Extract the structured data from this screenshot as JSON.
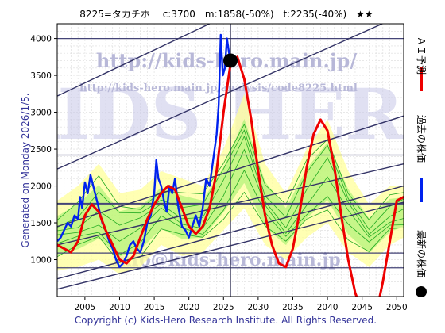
{
  "chart_data": {
    "type": "line",
    "title": "8225=タカチホ　 c:3700　m:1858(-50%)　t:2235(-40%)　★★",
    "xlim": [
      2001,
      2051
    ],
    "ylim": [
      500,
      4200
    ],
    "x_ticks": [
      "2005",
      "2010",
      "2015",
      "2020",
      "2025",
      "2030",
      "2035",
      "2040",
      "2045",
      "2050"
    ],
    "x_tick_values": [
      2005,
      2010,
      2015,
      2020,
      2025,
      2030,
      2035,
      2040,
      2045,
      2050
    ],
    "y_ticks": [
      "1000",
      "1500",
      "2000",
      "2500",
      "3000",
      "3500",
      "4000"
    ],
    "y_tick_values": [
      1000,
      1500,
      2000,
      2500,
      3000,
      3500,
      4000
    ],
    "current_point": {
      "x": 2026.0,
      "y": 3700
    },
    "current_date_line_x": 2026.0,
    "horizontal_levels": [
      4000,
      2420,
      1760,
      1090,
      890
    ],
    "trend_lines": [
      {
        "x": [
          2001,
          2051
        ],
        "y": [
          3220,
          5450
        ]
      },
      {
        "x": [
          2001,
          2051
        ],
        "y": [
          2230,
          4330
        ]
      },
      {
        "x": [
          2001,
          2051
        ],
        "y": [
          1450,
          2950
        ]
      },
      {
        "x": [
          2001,
          2051
        ],
        "y": [
          1200,
          2300
        ]
      },
      {
        "x": [
          2001,
          2051
        ],
        "y": [
          740,
          2000
        ]
      },
      {
        "x": [
          2001,
          2051
        ],
        "y": [
          600,
          1780
        ]
      }
    ],
    "series": [
      {
        "name": "過去の株価",
        "color": "#0022ee",
        "x": [
          2001,
          2001.5,
          2002,
          2002.5,
          2003,
          2003.5,
          2004,
          2004.3,
          2004.6,
          2005,
          2005.4,
          2005.8,
          2006.2,
          2006.6,
          2007,
          2007.5,
          2008,
          2008.5,
          2009,
          2009.5,
          2010,
          2010.5,
          2011,
          2011.5,
          2012,
          2012.5,
          2013,
          2013.5,
          2014,
          2014.5,
          2015,
          2015.3,
          2015.6,
          2016,
          2016.4,
          2016.8,
          2017.2,
          2017.6,
          2018,
          2018.5,
          2019,
          2019.5,
          2020,
          2020.5,
          2021,
          2021.5,
          2022,
          2022.5,
          2023,
          2023.5,
          2024,
          2024.3,
          2024.6,
          2024.9,
          2025.2,
          2025.5,
          2025.8,
          2026.0
        ],
        "values": [
          1250,
          1300,
          1400,
          1500,
          1450,
          1600,
          1550,
          1850,
          1700,
          2050,
          1900,
          2150,
          2000,
          1850,
          1700,
          1500,
          1400,
          1250,
          1150,
          1000,
          900,
          950,
          1050,
          1200,
          1250,
          1150,
          1100,
          1250,
          1500,
          1600,
          1900,
          2350,
          2100,
          2000,
          1800,
          1650,
          2000,
          1900,
          2100,
          1700,
          1450,
          1400,
          1300,
          1450,
          1600,
          1450,
          1700,
          2100,
          2000,
          2350,
          2700,
          3100,
          4050,
          3500,
          3600,
          4000,
          3800,
          3700
        ]
      },
      {
        "name": "ＡＩ予測",
        "color": "#ee0000",
        "x": [
          2001,
          2002,
          2003,
          2004,
          2005,
          2006,
          2007,
          2008,
          2009,
          2010,
          2011,
          2012,
          2013,
          2014,
          2015,
          2016,
          2017,
          2018,
          2019,
          2020,
          2021,
          2022,
          2023,
          2024,
          2025,
          2026,
          2027,
          2028,
          2029,
          2030,
          2031,
          2032,
          2033,
          2034,
          2035,
          2036,
          2037,
          2038,
          2039,
          2040,
          2041,
          2042,
          2043,
          2044,
          2045,
          2046,
          2047,
          2048,
          2049,
          2050,
          2051
        ],
        "values": [
          1200,
          1150,
          1100,
          1250,
          1600,
          1750,
          1650,
          1400,
          1200,
          1000,
          950,
          1050,
          1300,
          1550,
          1750,
          1900,
          2000,
          1950,
          1700,
          1450,
          1350,
          1450,
          1700,
          2200,
          3000,
          3650,
          3750,
          3450,
          2900,
          2200,
          1600,
          1200,
          950,
          900,
          1150,
          1650,
          2250,
          2700,
          2900,
          2750,
          2250,
          1600,
          1000,
          550,
          300,
          150,
          250,
          700,
          1250,
          1800,
          1850
        ]
      }
    ],
    "band": {
      "x": [
        2001,
        2004,
        2007,
        2010,
        2013,
        2016,
        2019,
        2022,
        2025,
        2028,
        2031,
        2034,
        2037,
        2040,
        2043,
        2046,
        2049,
        2051
      ],
      "upper": [
        1800,
        2000,
        2300,
        1900,
        1950,
        2200,
        2100,
        2000,
        2500,
        3250,
        2300,
        1900,
        2500,
        2900,
        2200,
        1750,
        2000,
        2000
      ],
      "lower": [
        850,
        900,
        1000,
        800,
        900,
        1200,
        1050,
        1100,
        1400,
        1700,
        1200,
        1000,
        1300,
        1500,
        1100,
        900,
        1200,
        1300
      ]
    },
    "watermarks": {
      "url": "http://kids-hero.main.jp/",
      "url_small": "http://kids-hero.main.jp/analysis/code8225.html",
      "big": "KIDS HERO",
      "email": "info@kids-hero.main.jp"
    },
    "left_label": "Generated on Monday 2026/1/5.",
    "copyright": "Copyright (c) Kids-Hero Research Institute. All Rights Reserved.",
    "legend": [
      {
        "label": "ＡＩ予測",
        "color": "#ee0000",
        "marker": "line"
      },
      {
        "label": "過去の株価",
        "color": "#0022ee",
        "marker": "line"
      },
      {
        "label": "最新の株価",
        "color": "#000000",
        "marker": "dot"
      }
    ]
  }
}
